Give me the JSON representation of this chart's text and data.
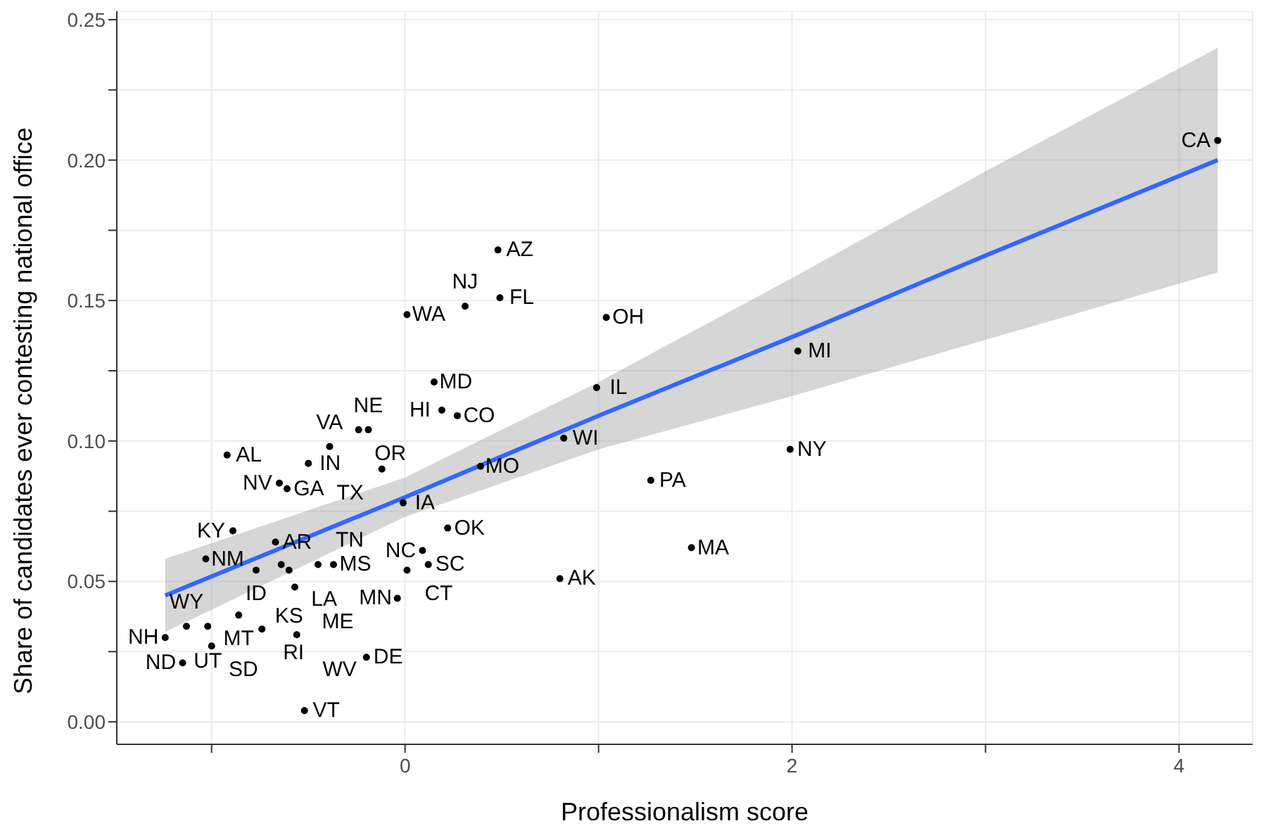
{
  "chart_data": {
    "type": "scatter",
    "xlabel": "Professionalism score",
    "ylabel": "Share of candidates ever contesting national office",
    "xlim": [
      -1.49,
      4.38
    ],
    "ylim": [
      -0.008,
      0.253
    ],
    "xticks": [
      {
        "value": -1,
        "label": null
      },
      0,
      {
        "value": 1,
        "label": null
      },
      2,
      {
        "value": 3,
        "label": null
      },
      4
    ],
    "yticks": [
      {
        "value": 0,
        "label": "0.00"
      },
      {
        "value": 0.025,
        "label": null
      },
      0.05,
      {
        "value": 0.075,
        "label": null
      },
      {
        "value": 0.1,
        "label": "0.10"
      },
      {
        "value": 0.125,
        "label": null
      },
      0.15,
      {
        "value": 0.175,
        "label": null
      },
      {
        "value": 0.2,
        "label": "0.20"
      },
      {
        "value": 0.225,
        "label": null
      },
      0.25
    ],
    "grid": true,
    "legend": false,
    "tick_labels": true,
    "series": [
      {
        "color": "#000000",
        "marker": "circle",
        "x": [
          4.2,
          0.48,
          0.01,
          0.31,
          0.49,
          1.04,
          0.15,
          0.19,
          0.27,
          0.99,
          2.03,
          0.82,
          1.99,
          1.27,
          1.48,
          0.8,
          -0.92,
          -0.5,
          -0.39,
          -0.24,
          -0.19,
          -0.12,
          0.39,
          -0.65,
          -0.61,
          -0.01,
          0.22,
          -0.89,
          -0.67,
          -1.03,
          -0.77,
          -0.64,
          -0.6,
          -0.45,
          -0.37,
          -0.57,
          0.09,
          0.01,
          0.12,
          -0.04,
          -0.86,
          -0.74,
          -0.56,
          -1.13,
          -1.02,
          -1.24,
          -1.0,
          -1.15,
          -0.2,
          -0.52
        ],
        "values": [
          0.207,
          0.168,
          0.145,
          0.148,
          0.151,
          0.144,
          0.121,
          0.111,
          0.109,
          0.119,
          0.132,
          0.101,
          0.097,
          0.086,
          0.062,
          0.051,
          0.095,
          0.092,
          0.098,
          0.104,
          0.104,
          0.09,
          0.091,
          0.085,
          0.083,
          0.078,
          0.069,
          0.068,
          0.064,
          0.058,
          0.054,
          0.056,
          0.054,
          0.056,
          0.056,
          0.048,
          0.061,
          0.054,
          0.056,
          0.044,
          0.038,
          0.033,
          0.031,
          0.034,
          0.034,
          0.03,
          0.027,
          0.021,
          0.023,
          0.004
        ],
        "value_labels": [
          "CA",
          "AZ",
          "WA",
          "NJ",
          "FL",
          "OH",
          "MD",
          "HI",
          "CO",
          "IL",
          "MI",
          "WI",
          "NY",
          "PA",
          "MA",
          "AK",
          "AL",
          "IN",
          "VA",
          "OR",
          "NE",
          "TX",
          "MO",
          "NV",
          "GA",
          "IA",
          "OK",
          "KY",
          "AR",
          "NM",
          "ID",
          "LA",
          "KS",
          "TN",
          "MS",
          "ME",
          "NC",
          "CT",
          "SC",
          "MN",
          "MT",
          "RI",
          "WV",
          "WY",
          "UT",
          "NH",
          "SD",
          "ND",
          "DE",
          "VT"
        ]
      },
      {
        "type": "line",
        "color": "#3366ff",
        "line_style": "solid",
        "marker": "none",
        "x": [
          -1.24,
          0,
          1,
          2,
          3,
          4.2
        ],
        "values": [
          0.045,
          0.08,
          0.109,
          0.137,
          0.166,
          0.2
        ],
        "lower": [
          0.032,
          0.073,
          0.097,
          0.116,
          0.136,
          0.16
        ],
        "upper": [
          0.058,
          0.087,
          0.121,
          0.158,
          0.196,
          0.24
        ]
      }
    ]
  }
}
